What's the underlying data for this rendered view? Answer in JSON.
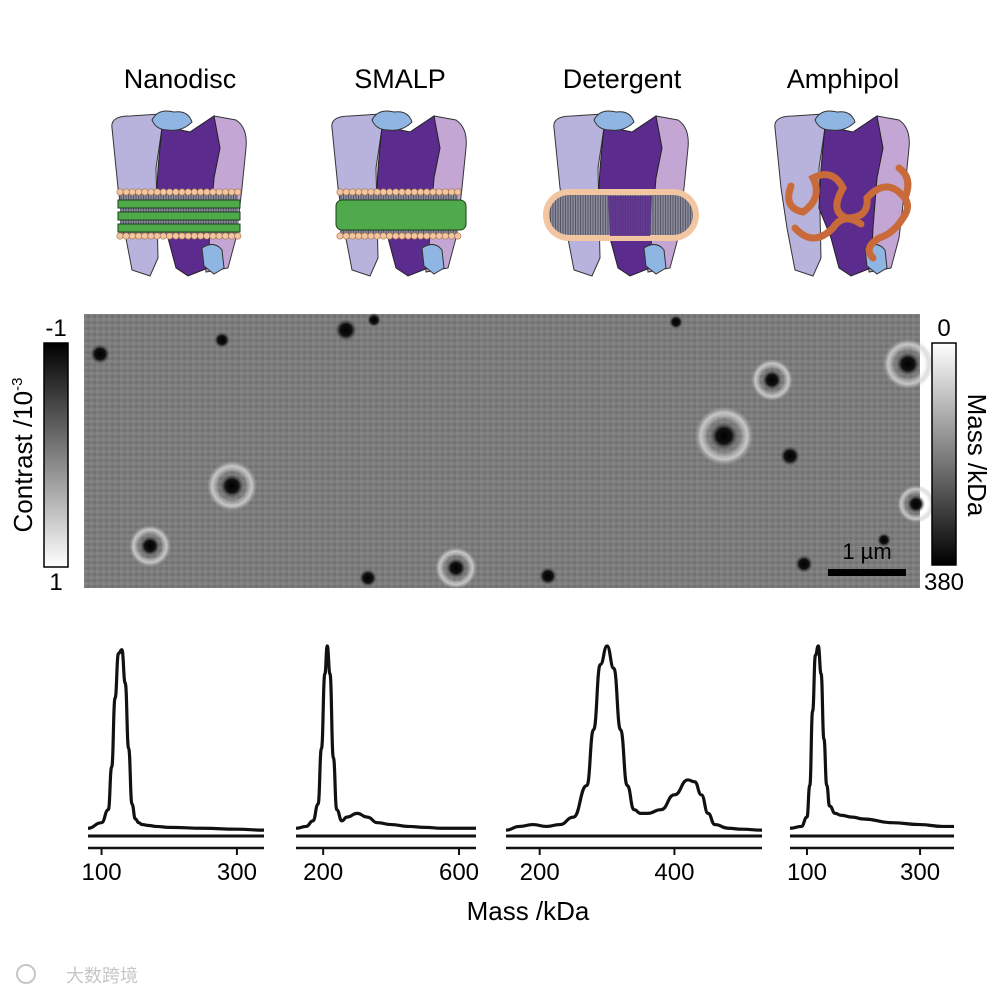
{
  "panels": [
    {
      "label": "Nanodisc"
    },
    {
      "label": "SMALP"
    },
    {
      "label": "Detergent"
    },
    {
      "label": "Amphipol"
    }
  ],
  "micrograph": {
    "left_bar": {
      "title": "Contrast /10",
      "exponent": "-3",
      "top": "-1",
      "bottom": "1"
    },
    "right_bar": {
      "title": "Mass /kDa",
      "top": "0",
      "bottom": "380"
    },
    "scalebar_label": "1 µm"
  },
  "colors": {
    "protein_light": "#b7b3dc",
    "protein_mid": "#c3a6d4",
    "protein_dark": "#5b2c8e",
    "protein_blue": "#8fb5e2",
    "lipid_head": "#f2c6a0",
    "belt_green": "#4eaa4a",
    "amphipol": "#c96a3a",
    "micrograph_bg": "#7a7a7a"
  },
  "chart_data": [
    {
      "type": "line",
      "panel": "Nanodisc",
      "xlim": [
        80,
        340
      ],
      "xticks": [
        100,
        300
      ],
      "x": [
        80,
        100,
        110,
        115,
        120,
        125,
        130,
        135,
        140,
        145,
        150,
        155,
        160,
        170,
        180,
        200,
        250,
        300,
        340
      ],
      "y": [
        0.02,
        0.05,
        0.12,
        0.35,
        0.72,
        0.96,
        0.98,
        0.8,
        0.45,
        0.15,
        0.07,
        0.05,
        0.04,
        0.035,
        0.03,
        0.025,
        0.02,
        0.015,
        0.01
      ]
    },
    {
      "type": "line",
      "panel": "SMALP",
      "xlim": [
        120,
        650
      ],
      "xticks": [
        200,
        600
      ],
      "x": [
        120,
        150,
        170,
        185,
        195,
        205,
        212,
        220,
        230,
        240,
        255,
        270,
        300,
        330,
        360,
        400,
        450,
        500,
        550,
        600,
        650
      ],
      "y": [
        0.02,
        0.03,
        0.06,
        0.15,
        0.45,
        0.85,
        1.0,
        0.85,
        0.4,
        0.12,
        0.06,
        0.08,
        0.1,
        0.08,
        0.05,
        0.04,
        0.03,
        0.025,
        0.02,
        0.02,
        0.02
      ]
    },
    {
      "type": "line",
      "panel": "Detergent",
      "xlim": [
        150,
        530
      ],
      "xticks": [
        200,
        400
      ],
      "x": [
        150,
        170,
        190,
        210,
        230,
        250,
        270,
        280,
        290,
        300,
        310,
        320,
        330,
        340,
        350,
        360,
        380,
        400,
        420,
        430,
        440,
        450,
        460,
        480,
        500,
        530
      ],
      "y": [
        0.01,
        0.03,
        0.04,
        0.03,
        0.04,
        0.08,
        0.25,
        0.55,
        0.9,
        1.0,
        0.88,
        0.55,
        0.25,
        0.12,
        0.1,
        0.1,
        0.12,
        0.2,
        0.28,
        0.27,
        0.2,
        0.1,
        0.04,
        0.02,
        0.015,
        0.01
      ]
    },
    {
      "type": "line",
      "panel": "Amphipol",
      "xlim": [
        70,
        360
      ],
      "xticks": [
        100,
        300
      ],
      "x": [
        70,
        90,
        100,
        105,
        110,
        115,
        120,
        125,
        130,
        135,
        140,
        150,
        160,
        180,
        200,
        250,
        300,
        340,
        360
      ],
      "y": [
        0.02,
        0.03,
        0.08,
        0.25,
        0.65,
        0.95,
        1.0,
        0.85,
        0.5,
        0.25,
        0.14,
        0.1,
        0.09,
        0.08,
        0.07,
        0.05,
        0.04,
        0.03,
        0.03
      ]
    }
  ],
  "xlabel": "Mass /kDa",
  "watermark": "大数跨境"
}
